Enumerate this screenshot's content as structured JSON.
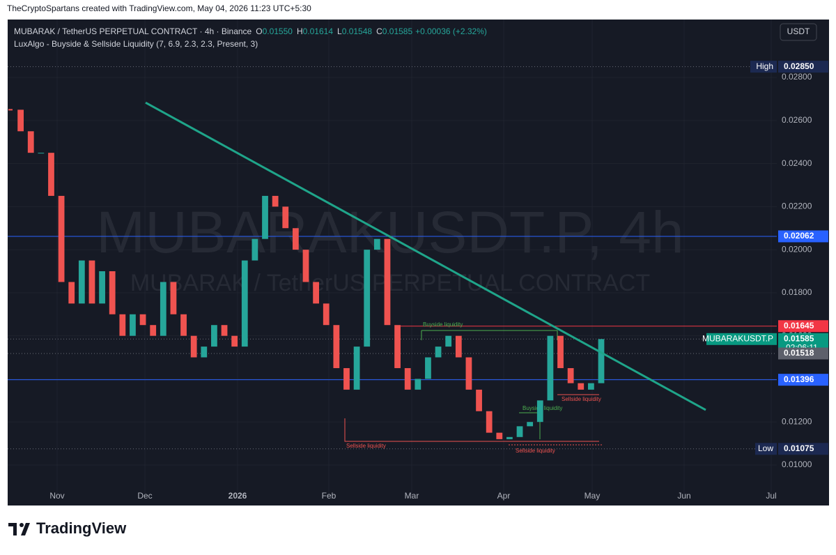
{
  "header": {
    "attribution": "TheCryptoSpartans created with TradingView.com, May 04, 2026 11:23 UTC+5:30"
  },
  "legend": {
    "symbol": "MUBARAK / TetherUS PERPETUAL CONTRACT · 4h · Binance",
    "ohlc": [
      [
        "O",
        "0.01550"
      ],
      [
        "H",
        "0.01614"
      ],
      [
        "L",
        "0.01548"
      ],
      [
        "C",
        "0.01585"
      ]
    ],
    "change": "+0.00036 (+2.32%)",
    "indicator": "LuxAlgo - Buyside & Sellside Liquidity (7, 6.9, 2.3, 2.3, Present, 3)"
  },
  "currency_button": "USDT",
  "watermark": {
    "line1": "MUBARAKUSDT.P, 4h",
    "line2": "MUBARAK / TetherUS PERPETUAL CONTRACT"
  },
  "annotations": [
    "Buyside liquidity",
    "Sellside liquidity",
    "Buyside liquidity",
    "Sellside liquidity",
    "Sellside liquidity"
  ],
  "footer": {
    "logo": "TradingView"
  },
  "chart_data": {
    "type": "candlestick",
    "values": [
      0.0265,
      0.0255,
      0.0245,
      0.0245,
      0.0225,
      0.0185,
      0.0175,
      0.0195,
      0.0175,
      0.019,
      0.017,
      0.016,
      0.017,
      0.0165,
      0.016,
      0.0185,
      0.017,
      0.016,
      0.015,
      0.0155,
      0.0165,
      0.016,
      0.0155,
      0.0195,
      0.0205,
      0.0225,
      0.022,
      0.021,
      0.02,
      0.0185,
      0.0175,
      0.0165,
      0.0145,
      0.0135,
      0.0155,
      0.02,
      0.0205,
      0.0165,
      0.0145,
      0.0135,
      0.014,
      0.015,
      0.0155,
      0.016,
      0.015,
      0.0135,
      0.0125,
      0.0115,
      0.0112,
      0.0113,
      0.0118,
      0.012,
      0.013,
      0.016,
      0.0145,
      0.0138,
      0.0135,
      0.0138,
      0.01585
    ],
    "up_color": "#26a69a",
    "down_color": "#ef5350",
    "x_labels": [
      "Nov",
      "Dec",
      "2026",
      "Feb",
      "Mar",
      "Apr",
      "May",
      "Jun",
      "Jul"
    ],
    "ylim": [
      0.00812,
      0.03069
    ],
    "yticks": [
      {
        "value": 0.01,
        "label": "0.01000"
      },
      {
        "value": 0.012,
        "label": "0.01200"
      },
      {
        "value": 0.014,
        "label": "0.01400"
      },
      {
        "value": 0.016,
        "label": "0.01600"
      },
      {
        "value": 0.018,
        "label": "0.01800"
      },
      {
        "value": 0.02,
        "label": "0.02000"
      },
      {
        "value": 0.022,
        "label": "0.02200"
      },
      {
        "value": 0.024,
        "label": "0.02400"
      },
      {
        "value": 0.026,
        "label": "0.02600"
      },
      {
        "value": 0.028,
        "label": "0.02800"
      }
    ],
    "grid": true,
    "trendline": {
      "values": [
        0.02683,
        0.01256
      ],
      "color": "#1fa58a"
    },
    "levels": [
      {
        "value": 0.0285,
        "label": "0.02850",
        "tag": "High",
        "color": "#1c2951",
        "style": "dotted"
      },
      {
        "value": 0.02062,
        "label": "0.02062",
        "color": "#2962ff",
        "style": "solid"
      },
      {
        "value": 0.01645,
        "label": "0.01645",
        "color": "#f23645",
        "style": "solid"
      },
      {
        "value": 0.01585,
        "label": "0.01585",
        "tag": "MUBARAKUSDT.P",
        "countdown": "02:06:11",
        "color": "#089981",
        "style": "dotted"
      },
      {
        "value": 0.01518,
        "label": "0.01518",
        "color": "#5d606b",
        "style": "dotted"
      },
      {
        "value": 0.01396,
        "label": "0.01396",
        "color": "#2962ff",
        "style": "solid"
      },
      {
        "value": 0.01075,
        "label": "0.01075",
        "tag": "Low",
        "color": "#1c2951",
        "style": "dotted"
      }
    ]
  }
}
